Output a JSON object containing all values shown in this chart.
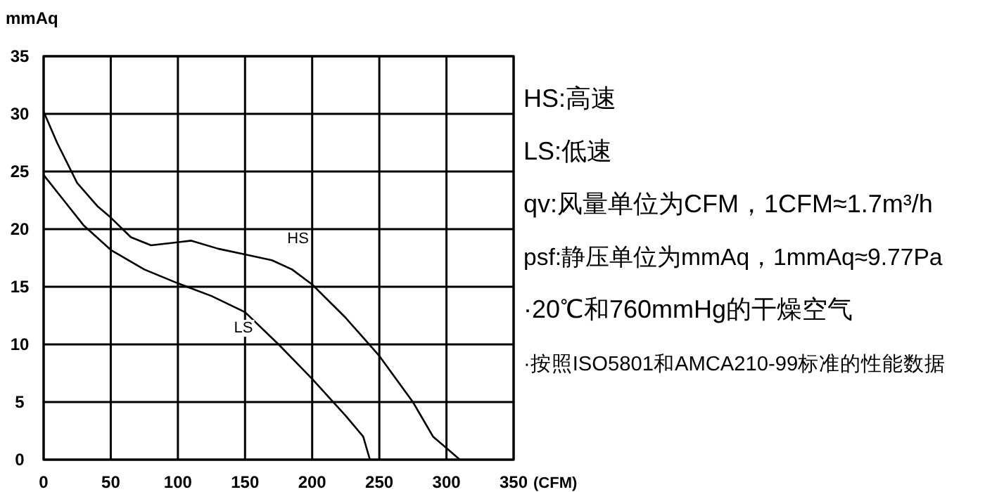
{
  "chart_data": {
    "type": "line",
    "xlabel": "(CFM)",
    "ylabel": "mmAq",
    "xlim": [
      0,
      350
    ],
    "ylim": [
      0,
      35
    ],
    "xticks": [
      0,
      50,
      100,
      150,
      200,
      250,
      300,
      350
    ],
    "yticks": [
      0,
      5,
      10,
      15,
      20,
      25,
      30,
      35
    ],
    "grid": true,
    "marker": "none",
    "line_style": "solid",
    "series": [
      {
        "name": "HS",
        "color": "#000000",
        "x": [
          0,
          10,
          25,
          40,
          50,
          65,
          80,
          95,
          110,
          130,
          150,
          170,
          185,
          200,
          225,
          250,
          275,
          290,
          300,
          310
        ],
        "values": [
          30.2,
          27.5,
          24,
          22,
          21,
          19.3,
          18.6,
          18.8,
          19,
          18.3,
          17.8,
          17.3,
          16.5,
          15.2,
          12.3,
          9,
          5,
          2,
          1,
          0
        ]
      },
      {
        "name": "LS",
        "color": "#000000",
        "x": [
          0,
          15,
          30,
          50,
          75,
          100,
          125,
          150,
          175,
          200,
          225,
          238,
          243
        ],
        "values": [
          24.7,
          22.5,
          20.3,
          18.2,
          16.5,
          15.3,
          14.2,
          12.8,
          10,
          7,
          3.8,
          2,
          0
        ]
      }
    ],
    "annotations": [
      "HS:高速",
      "LS:低速",
      "qv:风量单位为CFM，1CFM≈1.7m³/h",
      "psf:静压单位为mmAq，1mmAq≈9.77Pa",
      "·20℃和760mmHg的干燥空气",
      "·按照ISO5801和AMCA210-99标准的性能数据"
    ]
  }
}
